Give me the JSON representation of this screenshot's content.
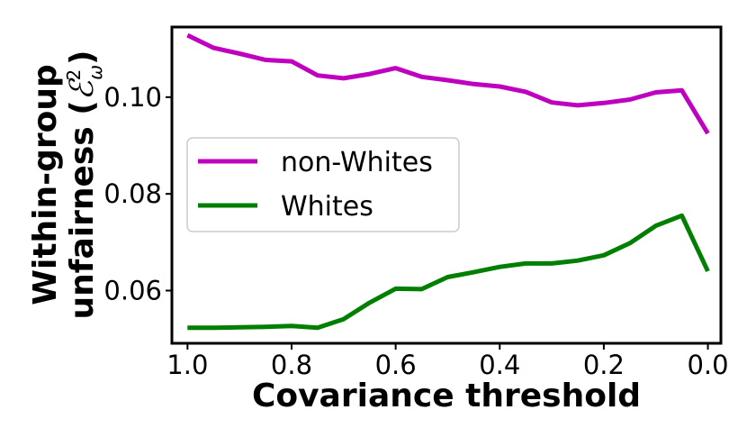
{
  "chart_data": {
    "type": "line",
    "xlabel": "Covariance threshold",
    "ylabel_line1": "Within-group",
    "ylabel_line2": "unfairness (",
    "ylabel_symbol": "ℰ",
    "ylabel_sup": "2",
    "ylabel_sub": "ω",
    "ylabel_close": ")",
    "x": [
      1.0,
      0.95,
      0.9,
      0.85,
      0.8,
      0.75,
      0.7,
      0.65,
      0.6,
      0.55,
      0.5,
      0.45,
      0.4,
      0.35,
      0.3,
      0.25,
      0.2,
      0.15,
      0.1,
      0.05,
      0.0
    ],
    "xlim": [
      1.03,
      -0.025
    ],
    "ylim": [
      0.0491,
      0.1145
    ],
    "xticks": [
      {
        "value": 1.0,
        "label": "1.0"
      },
      {
        "value": 0.8,
        "label": "0.8"
      },
      {
        "value": 0.6,
        "label": "0.6"
      },
      {
        "value": 0.4,
        "label": "0.4"
      },
      {
        "value": 0.2,
        "label": "0.2"
      },
      {
        "value": 0.0,
        "label": "0.0"
      }
    ],
    "yticks": [
      {
        "value": 0.06,
        "label": "0.06"
      },
      {
        "value": 0.08,
        "label": "0.08"
      },
      {
        "value": 0.1,
        "label": "0.10"
      }
    ],
    "series": [
      {
        "name": "non-Whites",
        "color": "#bf00bf",
        "values": [
          0.1128,
          0.1102,
          0.109,
          0.1077,
          0.1074,
          0.1045,
          0.1039,
          0.1048,
          0.106,
          0.1042,
          0.1035,
          0.1027,
          0.1022,
          0.1011,
          0.0989,
          0.0983,
          0.0988,
          0.0995,
          0.101,
          0.1014,
          0.0925
        ]
      },
      {
        "name": "Whites",
        "color": "#007f00",
        "values": [
          0.0523,
          0.0523,
          0.0524,
          0.0525,
          0.0527,
          0.0523,
          0.0541,
          0.0575,
          0.0604,
          0.0603,
          0.0628,
          0.0638,
          0.0649,
          0.0656,
          0.0656,
          0.0662,
          0.0673,
          0.0698,
          0.0734,
          0.0755,
          0.064
        ]
      }
    ],
    "grid": false,
    "legend_position": "center-left"
  }
}
